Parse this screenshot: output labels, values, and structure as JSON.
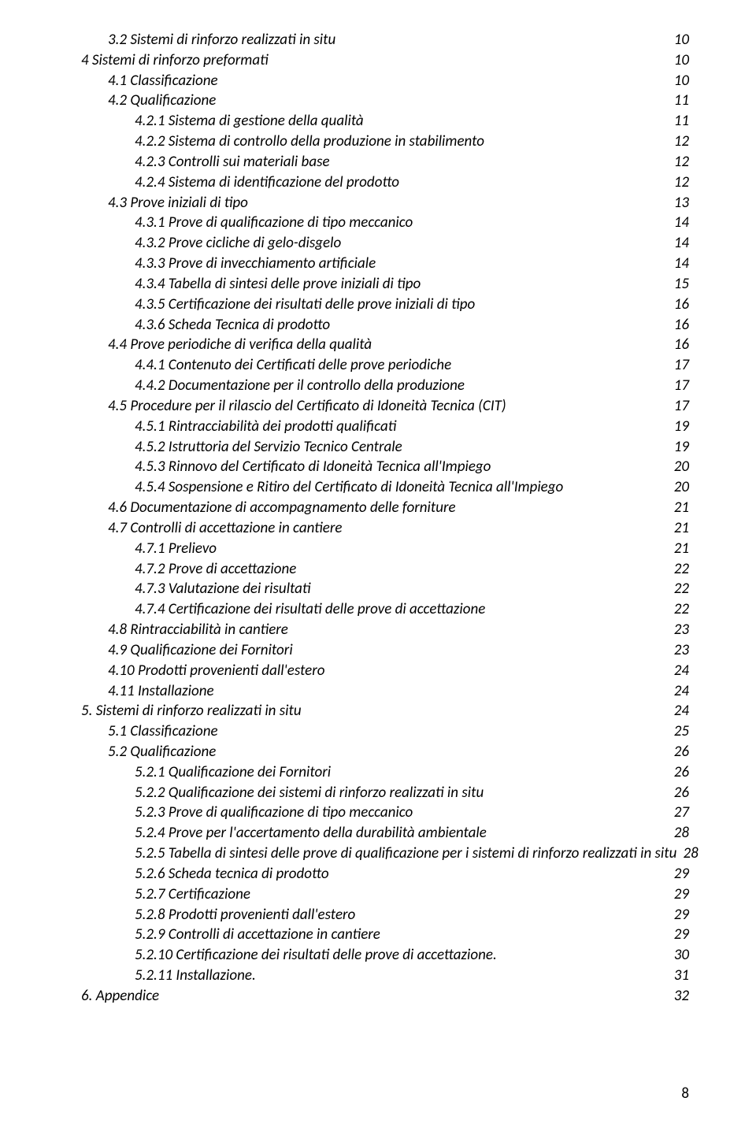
{
  "toc": [
    {
      "indent": 2,
      "label": "3.2 Sistemi di rinforzo realizzati in situ",
      "page": "10"
    },
    {
      "indent": 1,
      "label": "4 Sistemi di rinforzo preformati",
      "page": "10"
    },
    {
      "indent": 2,
      "label": "4.1 Classificazione",
      "page": "10"
    },
    {
      "indent": 2,
      "label": "4.2 Qualificazione",
      "page": "11"
    },
    {
      "indent": 3,
      "label": "4.2.1 Sistema di gestione della qualità",
      "page": "11"
    },
    {
      "indent": 3,
      "label": "4.2.2 Sistema di controllo della produzione in stabilimento",
      "page": "12"
    },
    {
      "indent": 3,
      "label": "4.2.3 Controlli sui materiali base",
      "page": "12"
    },
    {
      "indent": 3,
      "label": "4.2.4 Sistema di identificazione del prodotto",
      "page": "12"
    },
    {
      "indent": 2,
      "label": "4.3 Prove iniziali di tipo",
      "page": "13"
    },
    {
      "indent": 3,
      "label": "4.3.1 Prove di qualificazione di tipo meccanico",
      "page": "14"
    },
    {
      "indent": 3,
      "label": "4.3.2 Prove cicliche di gelo-disgelo",
      "page": "14"
    },
    {
      "indent": 3,
      "label": "4.3.3 Prove di invecchiamento artificiale",
      "page": "14"
    },
    {
      "indent": 3,
      "label": "4.3.4 Tabella di sintesi delle prove iniziali di tipo",
      "page": "15"
    },
    {
      "indent": 3,
      "label": "4.3.5 Certificazione dei risultati delle prove iniziali di tipo",
      "page": "16"
    },
    {
      "indent": 3,
      "label": "4.3.6 Scheda Tecnica di prodotto",
      "page": "16"
    },
    {
      "indent": 2,
      "label": "4.4 Prove periodiche di verifica della qualità",
      "page": "16"
    },
    {
      "indent": 3,
      "label": "4.4.1 Contenuto dei Certificati delle prove periodiche",
      "page": "17"
    },
    {
      "indent": 3,
      "label": "4.4.2 Documentazione per il controllo della produzione",
      "page": "17"
    },
    {
      "indent": 2,
      "label": "4.5 Procedure per il rilascio del Certificato di Idoneità Tecnica (CIT)",
      "page": "17"
    },
    {
      "indent": 3,
      "label": "4.5.1 Rintracciabilità dei prodotti qualificati",
      "page": "19"
    },
    {
      "indent": 3,
      "label": "4.5.2  Istruttoria del Servizio Tecnico Centrale",
      "page": "19"
    },
    {
      "indent": 3,
      "label": "4.5.3 Rinnovo del Certificato di Idoneità Tecnica all'Impiego",
      "page": "20"
    },
    {
      "indent": 3,
      "label": "4.5.4 Sospensione e Ritiro del Certificato di Idoneità Tecnica all'Impiego",
      "page": "20"
    },
    {
      "indent": 2,
      "label": "4.6 Documentazione di accompagnamento delle forniture",
      "page": "21"
    },
    {
      "indent": 2,
      "label": "4.7 Controlli di accettazione in cantiere",
      "page": "21"
    },
    {
      "indent": 3,
      "label": "4.7.1 Prelievo",
      "page": "21"
    },
    {
      "indent": 3,
      "label": "4.7.2 Prove di accettazione",
      "page": "22"
    },
    {
      "indent": 3,
      "label": "4.7.3 Valutazione dei risultati",
      "page": "22"
    },
    {
      "indent": 3,
      "label": "4.7.4 Certificazione dei risultati delle prove di accettazione",
      "page": "22"
    },
    {
      "indent": 2,
      "label": "4.8 Rintracciabilità in cantiere",
      "page": "23"
    },
    {
      "indent": 2,
      "label": "4.9 Qualificazione dei Fornitori",
      "page": "23"
    },
    {
      "indent": 2,
      "label": "4.10 Prodotti provenienti dall'estero",
      "page": "24"
    },
    {
      "indent": 2,
      "label": "4.11 Installazione",
      "page": "24"
    },
    {
      "indent": 1,
      "label": "5. Sistemi di rinforzo realizzati in situ",
      "page": "24"
    },
    {
      "indent": 2,
      "label": "5.1 Classificazione",
      "page": "25"
    },
    {
      "indent": 2,
      "label": "5.2  Qualificazione",
      "page": "26"
    },
    {
      "indent": 3,
      "label": "5.2.1 Qualificazione dei Fornitori",
      "page": "26"
    },
    {
      "indent": 3,
      "label": "5.2.2 Qualificazione dei sistemi di rinforzo realizzati in situ",
      "page": "26"
    },
    {
      "indent": 3,
      "label": "5.2.3 Prove di qualificazione di tipo meccanico",
      "page": "27"
    },
    {
      "indent": 3,
      "label": "5.2.4  Prove per l'accertamento della durabilità ambientale",
      "page": "28"
    },
    {
      "indent": 3,
      "label": "5.2.5 Tabella di sintesi delle prove di qualificazione per i sistemi di rinforzo realizzati in situ",
      "page": "28"
    },
    {
      "indent": 3,
      "label": "5.2.6 Scheda tecnica di prodotto",
      "page": "29"
    },
    {
      "indent": 3,
      "label": "5.2.7 Certificazione",
      "page": "29"
    },
    {
      "indent": 3,
      "label": "5.2.8 Prodotti provenienti dall'estero",
      "page": "29"
    },
    {
      "indent": 3,
      "label": "5.2.9 Controlli di accettazione in cantiere",
      "page": "29"
    },
    {
      "indent": 3,
      "label": "5.2.10 Certificazione dei risultati delle prove di accettazione.",
      "page": "30"
    },
    {
      "indent": 3,
      "label": "5.2.11  Installazione.",
      "page": "31"
    },
    {
      "indent": 1,
      "label": "6. Appendice",
      "page": "32"
    }
  ],
  "pageNumber": "8"
}
